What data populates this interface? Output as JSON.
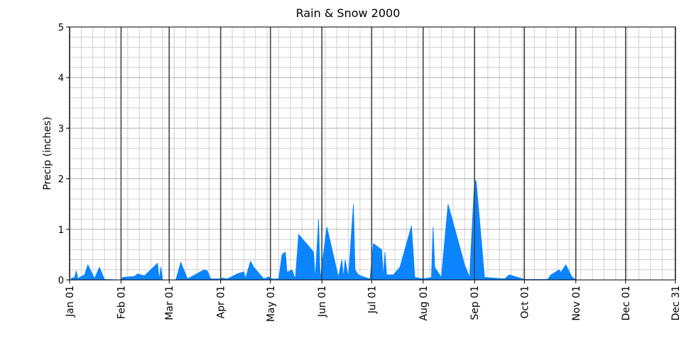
{
  "chart_data": {
    "type": "area",
    "title": "Rain & Snow 2000",
    "ylabel": "Precip (inches)",
    "color": "#0a84ff",
    "x": [
      1,
      3,
      4,
      5,
      6,
      9,
      11,
      15,
      18,
      21,
      31,
      32,
      39,
      41,
      45,
      53,
      54,
      55,
      56,
      64,
      67,
      71,
      81,
      83,
      85,
      91,
      92,
      95,
      101,
      105,
      106,
      109,
      111,
      117,
      120,
      121,
      126,
      128,
      130,
      131,
      134,
      136,
      138,
      147,
      148,
      150,
      151,
      155,
      162,
      164,
      165,
      166,
      168,
      171,
      172,
      174,
      178,
      181,
      183,
      187,
      188,
      189,
      190,
      191,
      195,
      199,
      206,
      208,
      213,
      218,
      219,
      220,
      224,
      228,
      238,
      241,
      244,
      245,
      250,
      262,
      265,
      274,
      288,
      290,
      295,
      296,
      299,
      302,
      303,
      305
    ],
    "values": [
      0.03,
      0.05,
      0.18,
      0.02,
      0.05,
      0.1,
      0.3,
      0.03,
      0.25,
      0.01,
      0.0,
      0.05,
      0.07,
      0.12,
      0.08,
      0.33,
      0.01,
      0.26,
      0.0,
      0.0,
      0.35,
      0.02,
      0.2,
      0.18,
      0.02,
      0.02,
      0.04,
      0.02,
      0.12,
      0.16,
      0.03,
      0.37,
      0.25,
      0.02,
      0.06,
      0.02,
      0.02,
      0.5,
      0.55,
      0.15,
      0.2,
      0.02,
      0.9,
      0.55,
      0.02,
      1.2,
      0.02,
      1.05,
      0.05,
      0.4,
      0.05,
      0.4,
      0.05,
      1.5,
      0.2,
      0.1,
      0.05,
      0.02,
      0.72,
      0.62,
      0.6,
      0.05,
      0.55,
      0.1,
      0.1,
      0.25,
      1.07,
      0.05,
      0.02,
      0.05,
      1.05,
      0.25,
      0.05,
      1.5,
      0.3,
      0.05,
      1.98,
      1.95,
      0.05,
      0.02,
      0.1,
      0.01,
      0.01,
      0.1,
      0.2,
      0.15,
      0.3,
      0.1,
      0.05,
      0.0
    ],
    "xlim": [
      0,
      365
    ],
    "xticks": [
      {
        "value": 0,
        "label": "Jan 01"
      },
      {
        "value": 31,
        "label": "Feb 01"
      },
      {
        "value": 60,
        "label": "Mar 01"
      },
      {
        "value": 91,
        "label": "Apr 01"
      },
      {
        "value": 121,
        "label": "May 01"
      },
      {
        "value": 152,
        "label": "Jun 01"
      },
      {
        "value": 182,
        "label": "Jul 01"
      },
      {
        "value": 213,
        "label": "Aug 01"
      },
      {
        "value": 244,
        "label": "Sep 01"
      },
      {
        "value": 274,
        "label": "Oct 01"
      },
      {
        "value": 305,
        "label": "Nov 01"
      },
      {
        "value": 335,
        "label": "Dec 01"
      },
      {
        "value": 365,
        "label": "Dec 31"
      }
    ],
    "xminorticks": [
      7,
      14,
      21,
      28,
      35,
      42,
      49,
      56,
      63,
      70,
      77,
      84,
      98,
      105,
      112,
      119,
      126,
      133,
      140,
      147,
      154,
      161,
      168,
      175,
      189,
      196,
      203,
      210,
      217,
      224,
      231,
      238,
      252,
      259,
      266,
      273,
      280,
      287,
      294,
      301,
      308,
      315,
      322,
      329,
      336,
      343,
      350,
      357
    ],
    "ylim": [
      0,
      5
    ],
    "yticks": [
      0,
      1,
      2,
      3,
      4,
      5
    ],
    "yminorticks": [
      0.2,
      0.4,
      0.6,
      0.8,
      1.2,
      1.4,
      1.6,
      1.8,
      2.2,
      2.4,
      2.6,
      2.8,
      3.2,
      3.4,
      3.6,
      3.8,
      4.2,
      4.4,
      4.6,
      4.8
    ],
    "grid": true
  }
}
